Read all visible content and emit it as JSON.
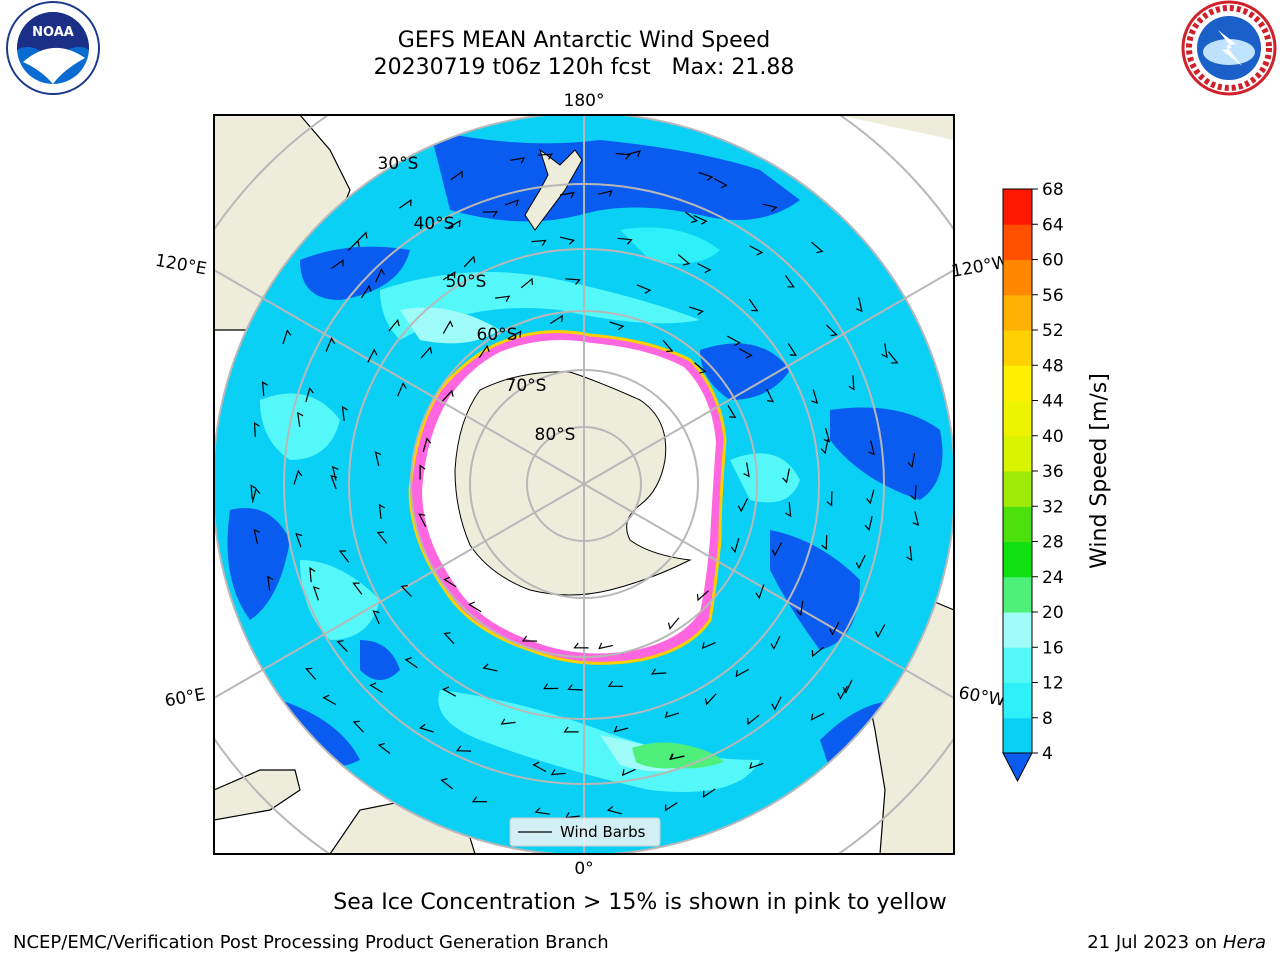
{
  "header": {
    "title_line1": "GEFS MEAN Antarctic Wind Speed",
    "title_line2": "20230719 t06z 120h fcst   Max: 21.88"
  },
  "logos": {
    "left": {
      "icon": "noaa-logo",
      "text": "NOAA"
    },
    "right": {
      "icon": "nws-logo",
      "text": "NATIONAL WEATHER SERVICE"
    }
  },
  "map": {
    "projection": "south-polar-stereographic",
    "longitude_labels": {
      "top": "180°",
      "bottom": "0°",
      "left_upper": "120°E",
      "left_lower": "60°E",
      "right_upper": "120°W",
      "right_lower": "60°W"
    },
    "latitude_labels": [
      "30°S",
      "40°S",
      "50°S",
      "60°S",
      "70°S",
      "80°S"
    ],
    "legend": {
      "label": "Wind Barbs"
    }
  },
  "colorbar": {
    "label": "Wind Speed [m/s]",
    "ticks": [
      "4",
      "8",
      "12",
      "16",
      "20",
      "24",
      "28",
      "32",
      "36",
      "40",
      "44",
      "48",
      "52",
      "56",
      "60",
      "64",
      "68"
    ],
    "colors": [
      "#0a5cf0",
      "#0bd0f5",
      "#2ef0f8",
      "#55f8f8",
      "#9ffcf8",
      "#4ef07a",
      "#10e010",
      "#4ce00c",
      "#a0ea08",
      "#d8f400",
      "#eef400",
      "#fff000",
      "#ffd000",
      "#ffb000",
      "#ff8800",
      "#ff5000",
      "#ff1800",
      "#ff0000"
    ],
    "extend": "min"
  },
  "subtitle": "Sea Ice Concentration > 15% is shown in pink to yellow",
  "footer": {
    "left": "NCEP/EMC/Verification Post Processing Product Generation Branch",
    "right_date": "21 Jul 2023 on ",
    "right_host": "Hera"
  }
}
